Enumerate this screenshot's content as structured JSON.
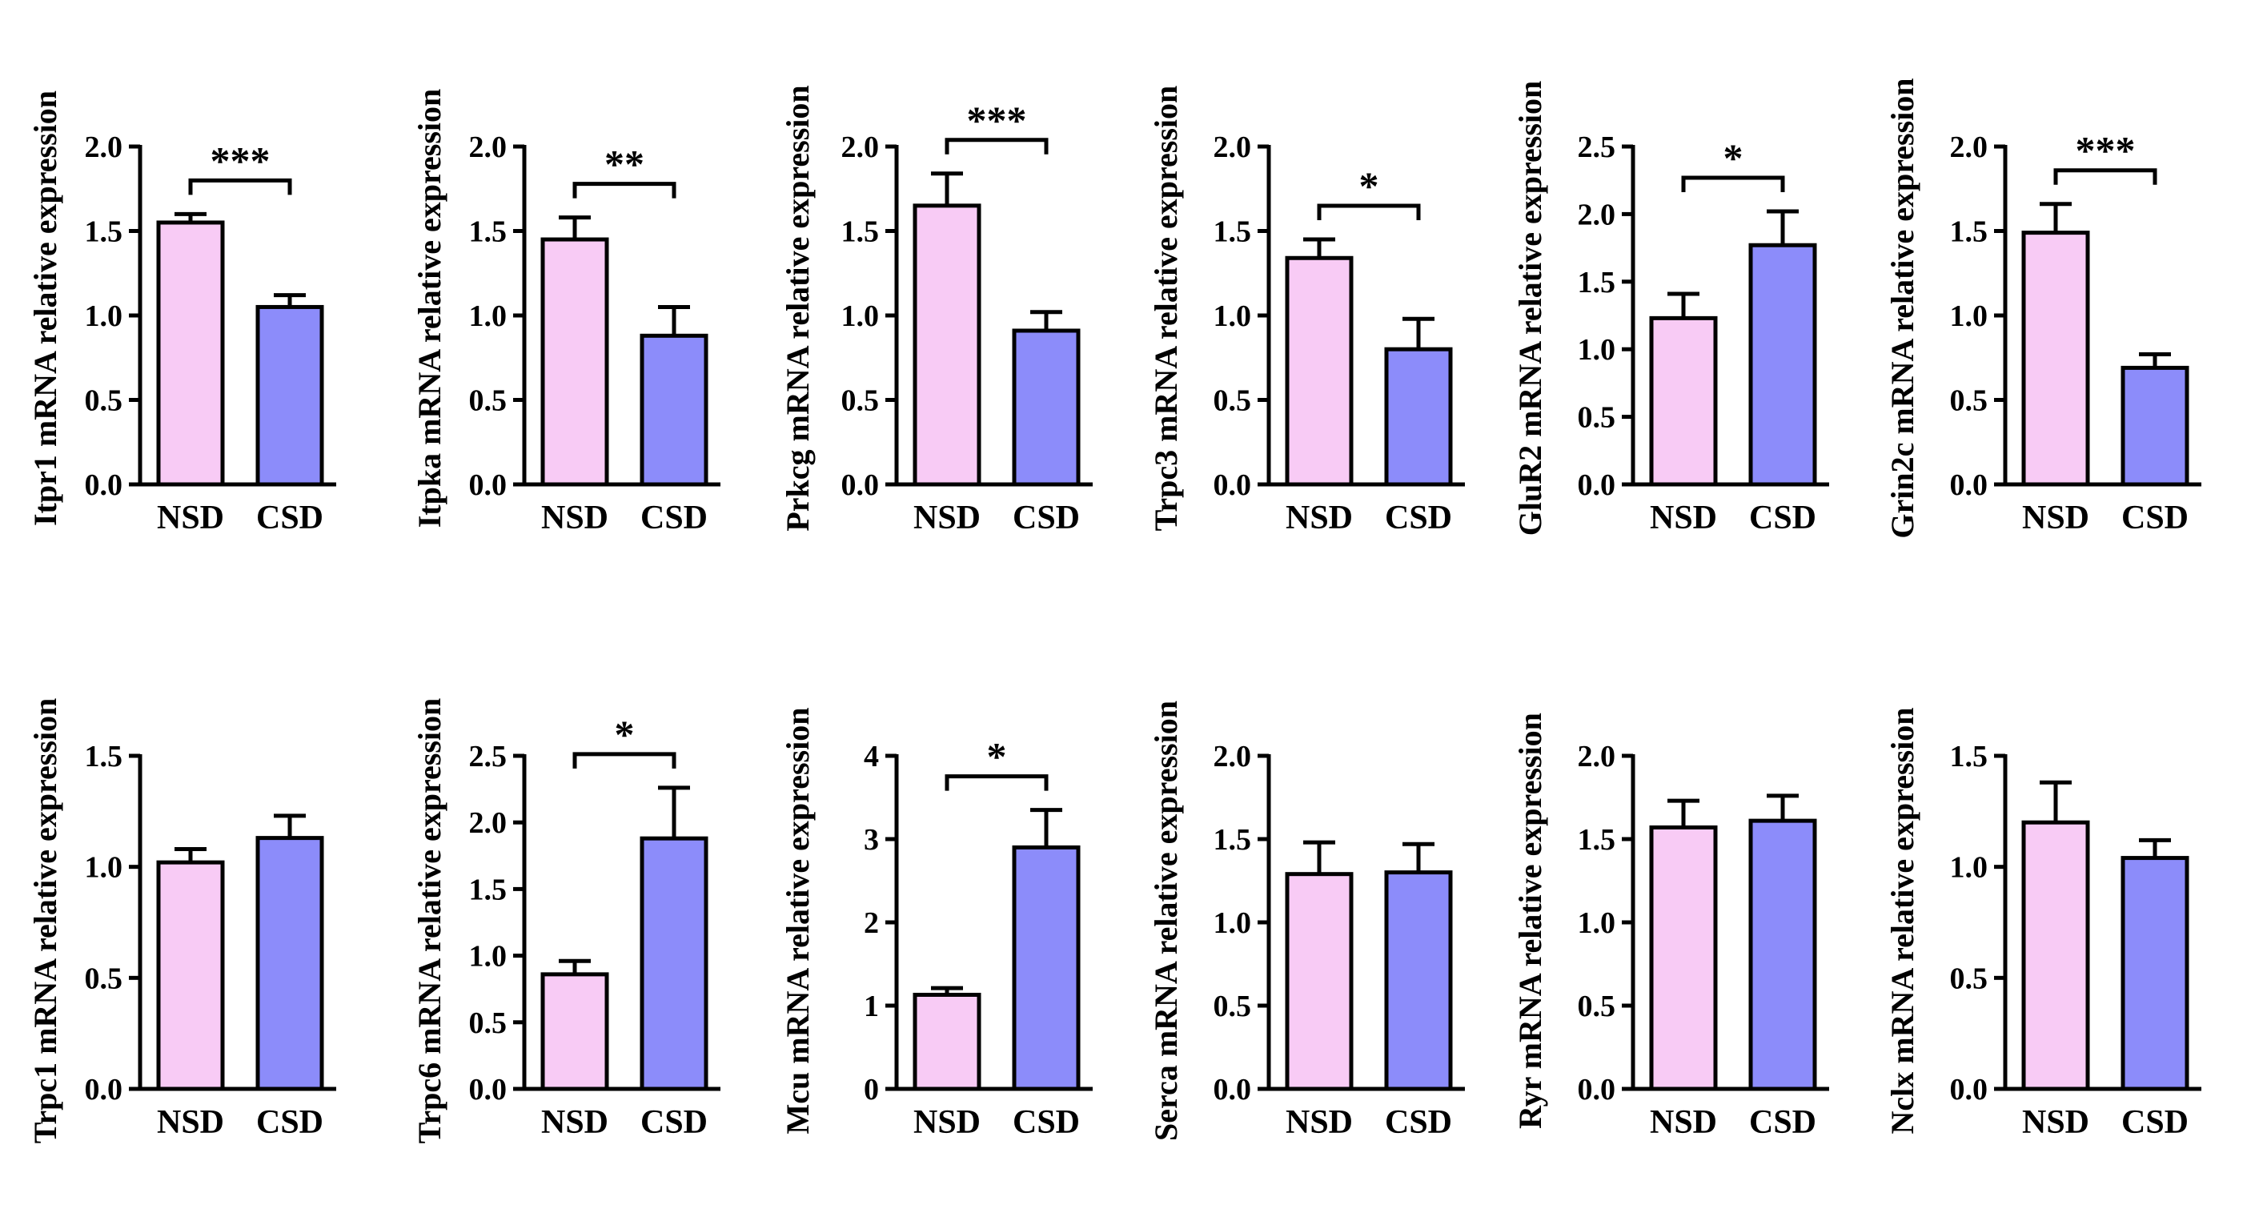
{
  "colors": {
    "nsd": "#f8cbf5",
    "csd": "#8c8cfa",
    "stroke": "#000000"
  },
  "chart_data": [
    {
      "type": "bar",
      "ylabel": "Itpr1 mRNA relative expression",
      "categories": [
        "NSD",
        "CSD"
      ],
      "values": [
        1.55,
        1.05
      ],
      "errors": [
        0.05,
        0.07
      ],
      "ylim": [
        0,
        2.0
      ],
      "yticks": [
        "0.0",
        "0.5",
        "1.0",
        "1.5",
        "2.0"
      ],
      "significance": "***"
    },
    {
      "type": "bar",
      "ylabel": "Itpka mRNA relative expression",
      "categories": [
        "NSD",
        "CSD"
      ],
      "values": [
        1.45,
        0.88
      ],
      "errors": [
        0.13,
        0.17
      ],
      "ylim": [
        0,
        2.0
      ],
      "yticks": [
        "0.0",
        "0.5",
        "1.0",
        "1.5",
        "2.0"
      ],
      "significance": "**"
    },
    {
      "type": "bar",
      "ylabel": "Prkcg mRNA relative expression",
      "categories": [
        "NSD",
        "CSD"
      ],
      "values": [
        1.65,
        0.91
      ],
      "errors": [
        0.19,
        0.11
      ],
      "ylim": [
        0,
        2.0
      ],
      "yticks": [
        "0.0",
        "0.5",
        "1.0",
        "1.5",
        "2.0"
      ],
      "significance": "***"
    },
    {
      "type": "bar",
      "ylabel": "Trpc3 mRNA relative expression",
      "categories": [
        "NSD",
        "CSD"
      ],
      "values": [
        1.34,
        0.8
      ],
      "errors": [
        0.11,
        0.18
      ],
      "ylim": [
        0,
        2.0
      ],
      "yticks": [
        "0.0",
        "0.5",
        "1.0",
        "1.5",
        "2.0"
      ],
      "significance": "*"
    },
    {
      "type": "bar",
      "ylabel": "GluR2 mRNA relative expression",
      "categories": [
        "NSD",
        "CSD"
      ],
      "values": [
        1.23,
        1.77
      ],
      "errors": [
        0.18,
        0.25
      ],
      "ylim": [
        0,
        2.5
      ],
      "yticks": [
        "0.0",
        "0.5",
        "1.0",
        "1.5",
        "2.0",
        "2.5"
      ],
      "significance": "*"
    },
    {
      "type": "bar",
      "ylabel": "Grin2c mRNA relative expression",
      "categories": [
        "NSD",
        "CSD"
      ],
      "values": [
        1.49,
        0.69
      ],
      "errors": [
        0.17,
        0.08
      ],
      "ylim": [
        0,
        2.0
      ],
      "yticks": [
        "0.0",
        "0.5",
        "1.0",
        "1.5",
        "2.0"
      ],
      "significance": "***"
    },
    {
      "type": "bar",
      "ylabel": "Trpc1 mRNA relative expression",
      "categories": [
        "NSD",
        "CSD"
      ],
      "values": [
        1.02,
        1.13
      ],
      "errors": [
        0.06,
        0.1
      ],
      "ylim": [
        0,
        1.5
      ],
      "yticks": [
        "0.0",
        "0.5",
        "1.0",
        "1.5"
      ],
      "significance": ""
    },
    {
      "type": "bar",
      "ylabel": "Trpc6 mRNA relative expression",
      "categories": [
        "NSD",
        "CSD"
      ],
      "values": [
        0.86,
        1.88
      ],
      "errors": [
        0.1,
        0.38
      ],
      "ylim": [
        0,
        2.5
      ],
      "yticks": [
        "0.0",
        "0.5",
        "1.0",
        "1.5",
        "2.0",
        "2.5"
      ],
      "significance": "*"
    },
    {
      "type": "bar",
      "ylabel": "Mcu mRNA relative expression",
      "categories": [
        "NSD",
        "CSD"
      ],
      "values": [
        1.13,
        2.9
      ],
      "errors": [
        0.08,
        0.45
      ],
      "ylim": [
        0,
        4
      ],
      "yticks": [
        "0",
        "1",
        "2",
        "3",
        "4"
      ],
      "significance": "*"
    },
    {
      "type": "bar",
      "ylabel": "Serca mRNA relative expression",
      "categories": [
        "NSD",
        "CSD"
      ],
      "values": [
        1.29,
        1.3
      ],
      "errors": [
        0.19,
        0.17
      ],
      "ylim": [
        0,
        2.0
      ],
      "yticks": [
        "0.0",
        "0.5",
        "1.0",
        "1.5",
        "2.0"
      ],
      "significance": ""
    },
    {
      "type": "bar",
      "ylabel": "Ryr mRNA relative expression",
      "categories": [
        "NSD",
        "CSD"
      ],
      "values": [
        1.57,
        1.61
      ],
      "errors": [
        0.16,
        0.15
      ],
      "ylim": [
        0,
        2.0
      ],
      "yticks": [
        "0.0",
        "0.5",
        "1.0",
        "1.5",
        "2.0"
      ],
      "significance": ""
    },
    {
      "type": "bar",
      "ylabel": "Nclx mRNA relative expression",
      "categories": [
        "NSD",
        "CSD"
      ],
      "values": [
        1.2,
        1.04
      ],
      "errors": [
        0.18,
        0.08
      ],
      "ylim": [
        0,
        1.5
      ],
      "yticks": [
        "0.0",
        "0.5",
        "1.0",
        "1.5"
      ],
      "significance": ""
    }
  ]
}
